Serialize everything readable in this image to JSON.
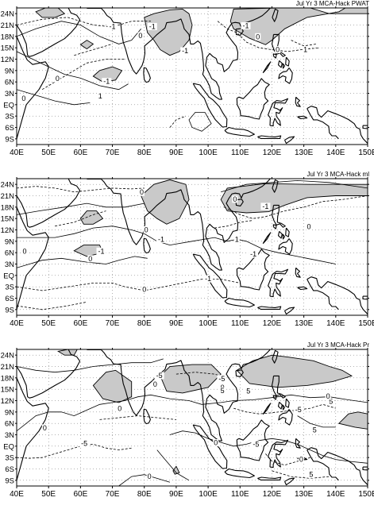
{
  "x_ticks": [
    "40E",
    "50E",
    "60E",
    "70E",
    "80E",
    "90E",
    "100E",
    "110E",
    "120E",
    "130E",
    "140E",
    "150E"
  ],
  "y_ticks": [
    "24N",
    "21N",
    "18N",
    "15N",
    "12N",
    "9N",
    "6N",
    "3N",
    "EQ",
    "3S",
    "6S",
    "9S"
  ],
  "panels": [
    {
      "title": "Jul Yr 3 MCA-Hack PWAT",
      "contour_labels": [
        {
          "text": "-1",
          "lon": 70.0,
          "lat": 20.6
        },
        {
          "text": "-1",
          "lon": 82.5,
          "lat": 20.6
        },
        {
          "text": "0",
          "lon": 78.8,
          "lat": 18.2
        },
        {
          "text": "-1",
          "lon": 92.8,
          "lat": 14.2
        },
        {
          "text": "-1",
          "lon": 111.8,
          "lat": 20.8
        },
        {
          "text": "0",
          "lon": 115.6,
          "lat": 17.9
        },
        {
          "text": "0",
          "lon": 121.8,
          "lat": 14.5
        },
        {
          "text": "1",
          "lon": 130.5,
          "lat": 14.5
        },
        {
          "text": "-1",
          "lon": 68.2,
          "lat": 6.1
        },
        {
          "text": "0",
          "lon": 52.8,
          "lat": 6.9
        },
        {
          "text": "1",
          "lon": 66.2,
          "lat": 2.3
        },
        {
          "text": "0",
          "lon": 42.2,
          "lat": 1.6
        }
      ]
    },
    {
      "title": "Jul Yr 3 MCA-Hack ml",
      "contour_labels": [
        {
          "text": "0",
          "lon": 79.2,
          "lat": 21.9
        },
        {
          "text": "0",
          "lon": 108.4,
          "lat": 20.1
        },
        {
          "text": "-1",
          "lon": 118.0,
          "lat": 18.2
        },
        {
          "text": "0",
          "lon": 80.6,
          "lat": 12.0
        },
        {
          "text": "-1",
          "lon": 85.3,
          "lat": 9.5
        },
        {
          "text": "1",
          "lon": 109.0,
          "lat": 9.5
        },
        {
          "text": "-1",
          "lon": 114.2,
          "lat": 5.6
        },
        {
          "text": "0",
          "lon": 131.6,
          "lat": 12.8
        },
        {
          "text": "0",
          "lon": 42.5,
          "lat": 6.3
        },
        {
          "text": "-1",
          "lon": 66.5,
          "lat": 6.4
        },
        {
          "text": "0",
          "lon": 63.1,
          "lat": 4.4
        },
        {
          "text": "0",
          "lon": 80.0,
          "lat": -3.7
        },
        {
          "text": "-1",
          "lon": 100.0,
          "lat": -0.9
        }
      ]
    },
    {
      "title": "Jul Yr 3 MCA-Hack Pr",
      "contour_labels": [
        {
          "text": "-5",
          "lon": 84.7,
          "lat": 18.6
        },
        {
          "text": "-5",
          "lon": 104.3,
          "lat": 17.8
        },
        {
          "text": "0",
          "lon": 104.5,
          "lat": 15.5
        },
        {
          "text": "5",
          "lon": 104.5,
          "lat": 14.6
        },
        {
          "text": "5",
          "lon": 138.5,
          "lat": 11.8
        },
        {
          "text": "0",
          "lon": 137.6,
          "lat": 13.2
        },
        {
          "text": "5",
          "lon": 112.6,
          "lat": 14.5
        },
        {
          "text": "0",
          "lon": 83.4,
          "lat": 16.3
        },
        {
          "text": "0",
          "lon": 72.3,
          "lat": 9.9
        },
        {
          "text": "0",
          "lon": 48.8,
          "lat": 4.8
        },
        {
          "text": "-5",
          "lon": 61.2,
          "lat": 0.7
        },
        {
          "text": "0",
          "lon": 102.4,
          "lat": 0.9
        },
        {
          "text": "-5",
          "lon": 115.0,
          "lat": 0.5
        },
        {
          "text": "-5",
          "lon": 128.3,
          "lat": 9.6
        },
        {
          "text": "5",
          "lon": 133.4,
          "lat": 4.3
        },
        {
          "text": "0",
          "lon": 81.6,
          "lat": -8.0
        },
        {
          "text": "0",
          "lon": 129.2,
          "lat": -3.5
        },
        {
          "text": "5",
          "lon": 132.3,
          "lat": -7.5
        }
      ]
    }
  ]
}
